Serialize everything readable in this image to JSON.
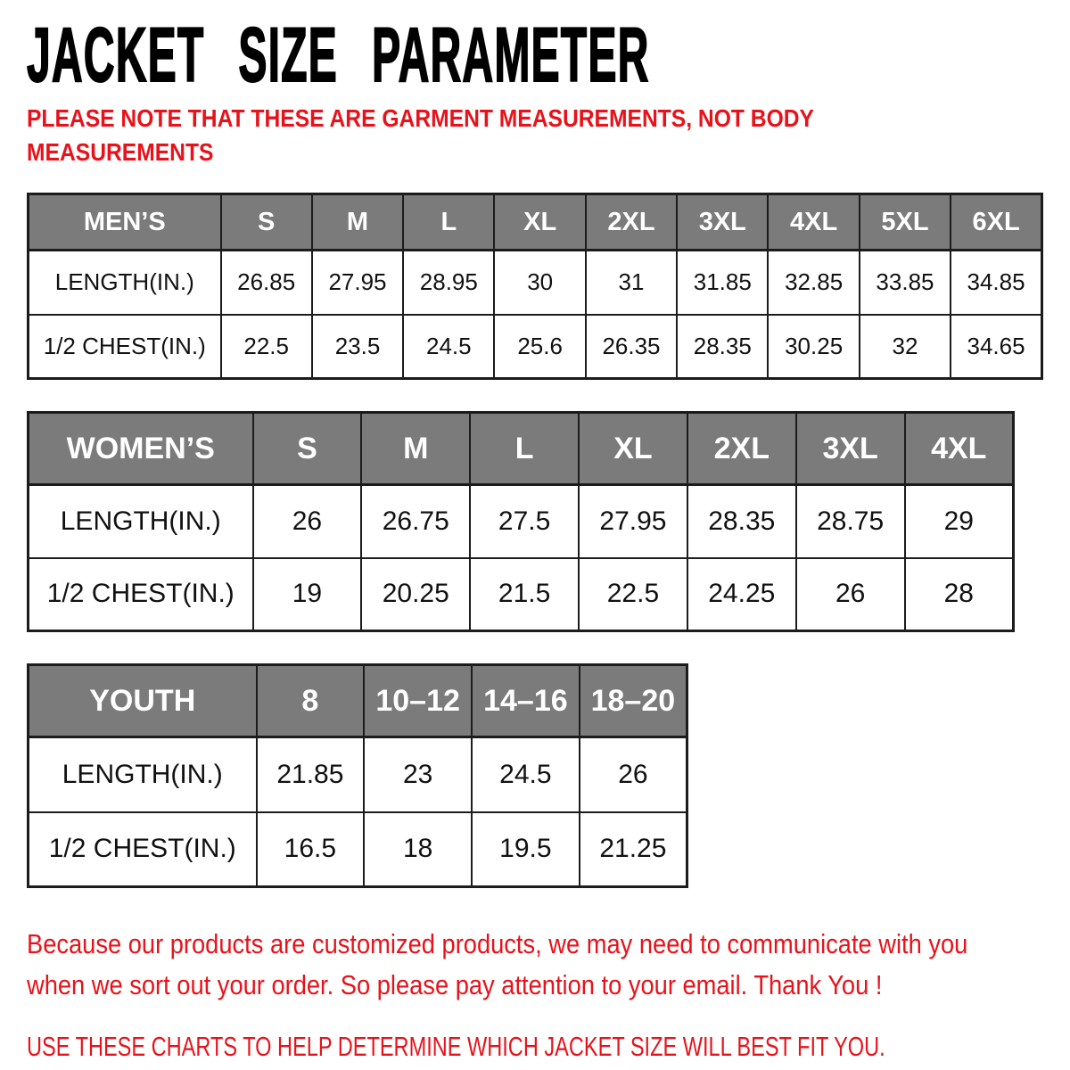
{
  "title": "JACKET SIZE PARAMETER",
  "note": {
    "line1": "PLEASE NOTE THAT THESE ARE GARMENT MEASUREMENTS, NOT BODY",
    "line2": "MEASUREMENTS"
  },
  "tables": [
    {
      "name": "mens",
      "header": [
        "MEN’S",
        "S",
        "M",
        "L",
        "XL",
        "2XL",
        "3XL",
        "4XL",
        "5XL",
        "6XL"
      ],
      "rows": [
        {
          "label": "LENGTH(IN.)",
          "values": [
            "26.85",
            "27.95",
            "28.95",
            "30",
            "31",
            "31.85",
            "32.85",
            "33.85",
            "34.85"
          ]
        },
        {
          "label": "1/2 CHEST(IN.)",
          "values": [
            "22.5",
            "23.5",
            "24.5",
            "25.6",
            "26.35",
            "28.35",
            "30.25",
            "32",
            "34.65"
          ]
        }
      ]
    },
    {
      "name": "womens",
      "header": [
        "WOMEN’S",
        "S",
        "M",
        "L",
        "XL",
        "2XL",
        "3XL",
        "4XL"
      ],
      "rows": [
        {
          "label": "LENGTH(IN.)",
          "values": [
            "26",
            "26.75",
            "27.5",
            "27.95",
            "28.35",
            "28.75",
            "29"
          ]
        },
        {
          "label": "1/2 CHEST(IN.)",
          "values": [
            "19",
            "20.25",
            "21.5",
            "22.5",
            "24.25",
            "26",
            "28"
          ]
        }
      ]
    },
    {
      "name": "youth",
      "header": [
        "YOUTH",
        "8",
        "10–12",
        "14–16",
        "18–20"
      ],
      "rows": [
        {
          "label": "LENGTH(IN.)",
          "values": [
            "21.85",
            "23",
            "24.5",
            "26"
          ]
        },
        {
          "label": "1/2 CHEST(IN.)",
          "values": [
            "16.5",
            "18",
            "19.5",
            "21.25"
          ]
        }
      ]
    }
  ],
  "footer": {
    "line1": "Because our products are customized products, we may need to communicate with you",
    "line2": "when we sort out your order. So please pay attention to your email. Thank You !",
    "usage": "USE THESE CHARTS TO HELP DETERMINE WHICH JACKET SIZE WILL BEST FIT YOU."
  },
  "colors": {
    "accent_red": "#e8121a",
    "header_gray": "#7b7b7b",
    "border_dark": "#1c1c1c",
    "title_black": "#000000"
  }
}
